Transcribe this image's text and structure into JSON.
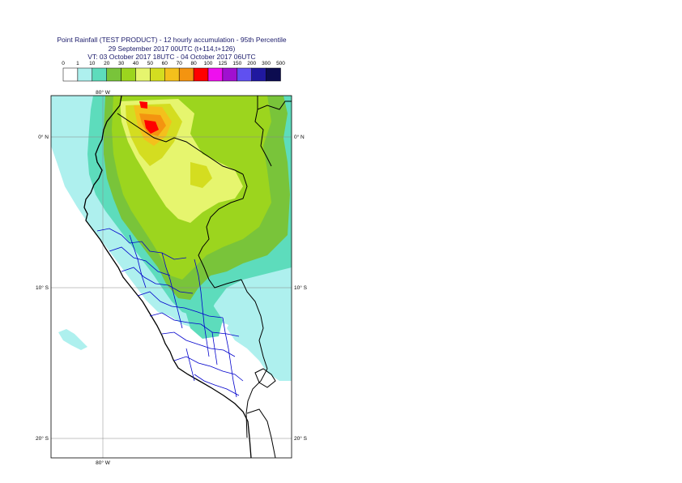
{
  "title": {
    "line1": "Point Rainfall (TEST PRODUCT) - 12 hourly accumulation - 95th Percentile",
    "line2": "29 September 2017 00UTC (t+114,t+126)",
    "line3": "VT: 03 October 2017 18UTC - 04 October 2017 06UTC"
  },
  "legend": {
    "ticks": [
      "0",
      "1",
      "10",
      "20",
      "30",
      "40",
      "50",
      "60",
      "70",
      "80",
      "100",
      "125",
      "150",
      "200",
      "300",
      "500"
    ],
    "colors": [
      "#ffffff",
      "#aef0ee",
      "#5ddcbc",
      "#79c43a",
      "#9cd51e",
      "#e6f56e",
      "#d4dd20",
      "#f4c01c",
      "#f49410",
      "#ff0000",
      "#ee10ee",
      "#a010d0",
      "#6050f0",
      "#2018a0",
      "#0c0c50"
    ]
  },
  "map": {
    "lon_label_top": "80° W",
    "lon_label_bottom": "80° W",
    "lat_labels": [
      "0° N",
      "10° S",
      "20° S"
    ],
    "ocean_color": "#ffffff",
    "coast_color": "#000000",
    "region_border_color": "#0000cc"
  }
}
